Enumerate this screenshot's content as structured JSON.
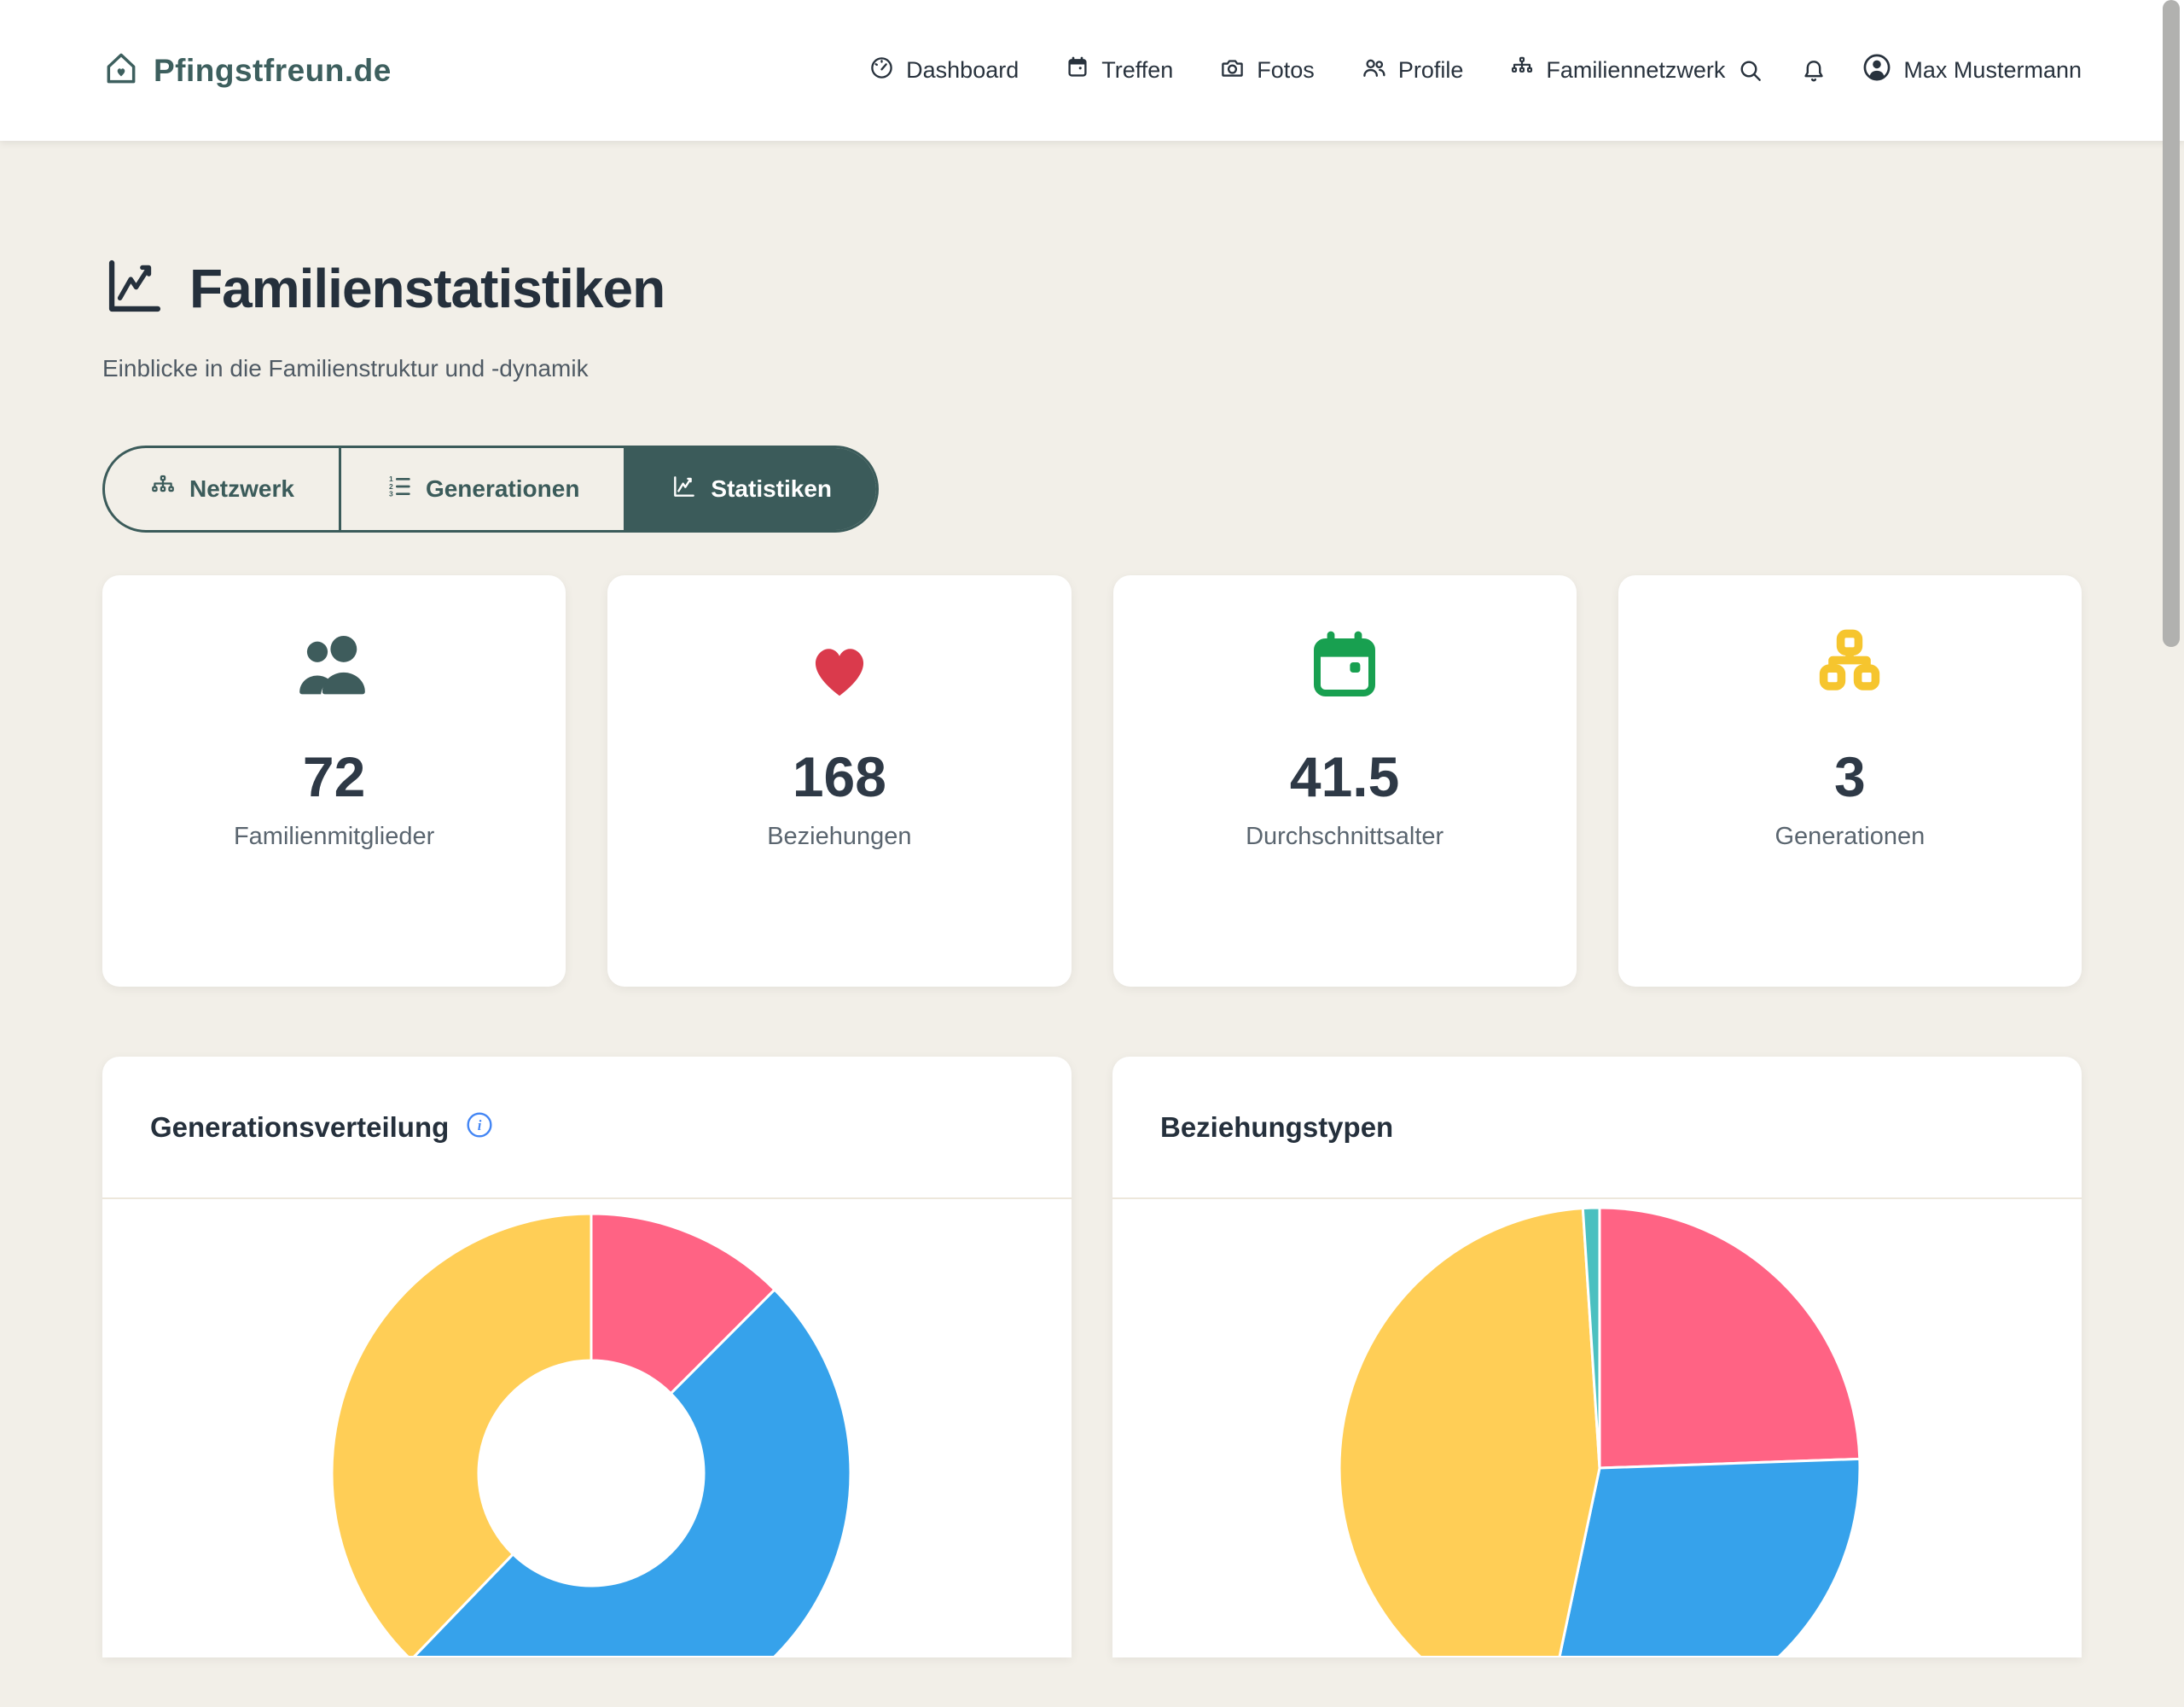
{
  "brand": {
    "name": "Pfingstfreun.de"
  },
  "nav": {
    "items": [
      {
        "label": "Dashboard"
      },
      {
        "label": "Treffen"
      },
      {
        "label": "Fotos"
      },
      {
        "label": "Profile"
      },
      {
        "label": "Familiennetzwerk"
      }
    ],
    "user": "Max Mustermann"
  },
  "page": {
    "title": "Familienstatistiken",
    "subtitle": "Einblicke in die Familienstruktur und -dynamik"
  },
  "tabs": [
    {
      "label": "Netzwerk",
      "active": false
    },
    {
      "label": "Generationen",
      "active": false
    },
    {
      "label": "Statistiken",
      "active": true
    }
  ],
  "stats": [
    {
      "value": "72",
      "label": "Familienmitglieder",
      "icon": "people-icon",
      "color": "#3E5C5C"
    },
    {
      "value": "168",
      "label": "Beziehungen",
      "icon": "heart-icon",
      "color": "#DA3A4C"
    },
    {
      "value": "41.5",
      "label": "Durchschnittsalter",
      "icon": "calendar-icon",
      "color": "#18A050"
    },
    {
      "value": "3",
      "label": "Generationen",
      "icon": "hierarchy-icon",
      "color": "#F6C52E"
    }
  ],
  "charts": {
    "left_title": "Generationsverteilung",
    "right_title": "Beziehungstypen"
  },
  "chart_data": [
    {
      "type": "pie",
      "variant": "doughnut",
      "title": "Generationsverteilung",
      "legend": "off",
      "total_reference": 72,
      "segments": [
        {
          "color": "#FF6384",
          "start_deg": 0,
          "end_deg": 45,
          "share_pct": 12.5,
          "est_count": 9
        },
        {
          "color": "#36A2EB",
          "start_deg": 45,
          "end_deg": 224,
          "share_pct": 49.7,
          "est_count": 36
        },
        {
          "color": "#FFCE56",
          "start_deg": 224,
          "end_deg": 360,
          "share_pct": 37.8,
          "est_count": 27
        }
      ]
    },
    {
      "type": "pie",
      "variant": "pie",
      "title": "Beziehungstypen",
      "legend": "off",
      "total_reference": 168,
      "segments": [
        {
          "color": "#FF6384",
          "start_deg": 0,
          "end_deg": 88,
          "share_pct": 24.4,
          "est_count": 41
        },
        {
          "color": "#36A2EB",
          "start_deg": 88,
          "end_deg": 192,
          "share_pct": 28.9,
          "est_count": 49
        },
        {
          "color": "#FFCE56",
          "start_deg": 192,
          "end_deg": 356.3,
          "share_pct": 45.6,
          "est_count": 76
        },
        {
          "color": "#4BC0C0",
          "start_deg": 356.3,
          "end_deg": 360,
          "share_pct": 1.1,
          "est_count": 2
        }
      ]
    }
  ],
  "colors": {
    "background": "#F2EFE8",
    "brand_teal": "#3B5B5A",
    "heading": "#25303C",
    "muted_text": "#5A656F",
    "info_blue": "#4285F4",
    "chart_pink": "#FF6384",
    "chart_blue": "#36A2EB",
    "chart_yellow": "#FFCE56",
    "chart_teal": "#4BC0C0"
  }
}
